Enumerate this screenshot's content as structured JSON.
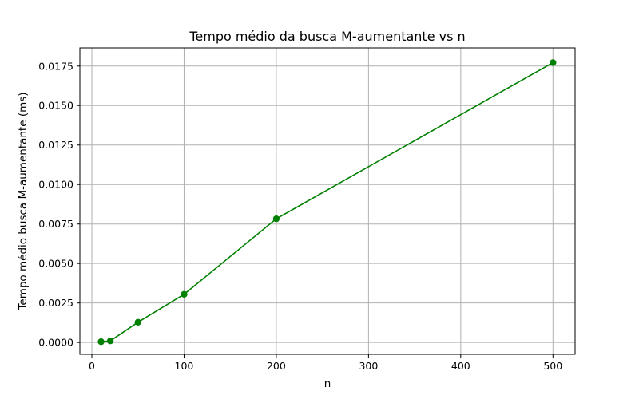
{
  "chart_data": {
    "type": "line",
    "title": "Tempo médio da busca M-aumentante vs n",
    "xlabel": "n",
    "ylabel": "Tempo médio busca M-aumentante (ms)",
    "x": [
      10,
      20,
      50,
      100,
      200,
      500
    ],
    "series": [
      {
        "values": [
          5e-05,
          0.0001,
          0.00128,
          0.00305,
          0.00783,
          0.01772
        ]
      }
    ],
    "xlim": [
      -13,
      524
    ],
    "ylim": [
      -0.00075,
      0.01865
    ],
    "xticks": [
      0,
      100,
      200,
      300,
      400,
      500
    ],
    "xtick_labels": [
      "0",
      "100",
      "200",
      "300",
      "400",
      "500"
    ],
    "yticks": [
      0,
      0.0025,
      0.005,
      0.0075,
      0.01,
      0.0125,
      0.015,
      0.0175
    ],
    "ytick_labels": [
      "0.0000",
      "0.0025",
      "0.0050",
      "0.0075",
      "0.0100",
      "0.0125",
      "0.0150",
      "0.0175"
    ],
    "grid": true,
    "colors": {
      "line": "#008000",
      "grid": "#b0b0b0",
      "axes": "#000000"
    }
  }
}
